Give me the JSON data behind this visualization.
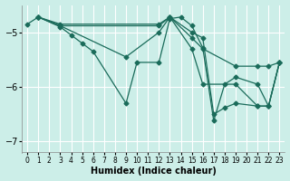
{
  "xlabel": "Humidex (Indice chaleur)",
  "ylabel": "",
  "background_color": "#cceee8",
  "grid_color": "#ffffff",
  "line_color": "#1a6b5a",
  "xlim": [
    -0.5,
    23.5
  ],
  "ylim": [
    -7.2,
    -4.5
  ],
  "yticks": [
    -7,
    -6,
    -5
  ],
  "xtick_labels": [
    "0",
    "1",
    "2",
    "3",
    "4",
    "5",
    "6",
    "7",
    "8",
    "9",
    "10",
    "11",
    "12",
    "13",
    "14",
    "15",
    "16",
    "17",
    "18",
    "19",
    "20",
    "21",
    "22",
    "23"
  ],
  "series": [
    {
      "x": [
        0,
        1,
        3,
        4,
        5,
        6,
        9,
        10,
        12,
        13,
        14,
        15,
        16,
        17,
        18,
        19,
        21,
        22,
        23
      ],
      "y": [
        -4.85,
        -4.72,
        -4.9,
        -5.05,
        -5.2,
        -5.35,
        -6.3,
        -5.55,
        -5.55,
        -4.75,
        -4.72,
        -4.88,
        -5.28,
        -6.62,
        -5.95,
        -5.82,
        -5.95,
        -6.35,
        -5.55
      ]
    },
    {
      "x": [
        1,
        3,
        9,
        12,
        13,
        15,
        16,
        19,
        21,
        22,
        23
      ],
      "y": [
        -4.72,
        -4.88,
        -5.45,
        -5.0,
        -4.72,
        -5.3,
        -5.95,
        -5.95,
        -6.35,
        -6.35,
        -5.55
      ]
    },
    {
      "x": [
        1,
        3,
        12,
        13,
        15,
        16,
        19,
        21,
        22,
        23
      ],
      "y": [
        -4.72,
        -4.88,
        -4.88,
        -4.72,
        -5.1,
        -5.3,
        -5.62,
        -5.62,
        -5.62,
        -5.55
      ]
    },
    {
      "x": [
        1,
        3,
        12,
        13,
        15,
        16,
        17,
        18,
        19,
        21,
        22,
        23
      ],
      "y": [
        -4.72,
        -4.85,
        -4.85,
        -4.72,
        -5.0,
        -5.1,
        -6.5,
        -6.38,
        -6.3,
        -6.35,
        -6.35,
        -5.55
      ]
    }
  ]
}
